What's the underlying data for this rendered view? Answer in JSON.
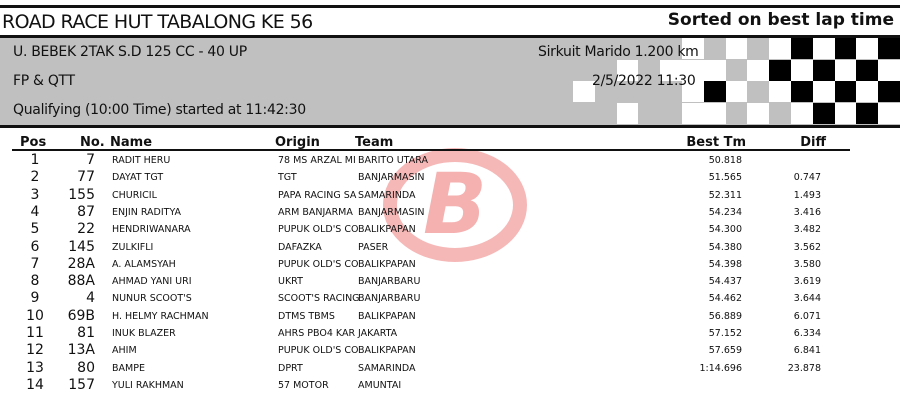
{
  "header": {
    "title": "ROAD RACE HUT TABALONG KE 56",
    "sort_note": "Sorted on best lap time",
    "class_name": "U. BEBEK 2TAK S.D 125 CC - 40 UP",
    "session": "FP & QTT",
    "status": "Qualifying (10:00 Time) started at 11:42:30",
    "circuit": "Sirkuit Marido 1.200 km",
    "datetime": "2/5/2022 11:30"
  },
  "logo": {
    "text": "B",
    "color": "#e01010"
  },
  "table": {
    "columns": {
      "pos": "Pos",
      "no": "No.",
      "name": "Name",
      "origin": "Origin",
      "team": "Team",
      "best": "Best Tm",
      "diff": "Diff"
    },
    "rows": [
      {
        "pos": "1",
        "no": "7",
        "name": "RADIT HERU",
        "origin": "78 MS ARZAL MI",
        "team": "BARITO UTARA",
        "best": "50.818",
        "diff": ""
      },
      {
        "pos": "2",
        "no": "77",
        "name": "DAYAT TGT",
        "origin": "TGT",
        "team": "BANJARMASIN",
        "best": "51.565",
        "diff": "0.747"
      },
      {
        "pos": "3",
        "no": "155",
        "name": "CHURICIL",
        "origin": "PAPA RACING SA",
        "team": "SAMARINDA",
        "best": "52.311",
        "diff": "1.493"
      },
      {
        "pos": "4",
        "no": "87",
        "name": "ENJIN RADITYA",
        "origin": "ARM BANJARMA",
        "team": "BANJARMASIN",
        "best": "54.234",
        "diff": "3.416"
      },
      {
        "pos": "5",
        "no": "22",
        "name": "HENDRIWANARA",
        "origin": "PUPUK OLD'S CO",
        "team": "BALIKPAPAN",
        "best": "54.300",
        "diff": "3.482"
      },
      {
        "pos": "6",
        "no": "145",
        "name": "ZULKIFLI",
        "origin": "DAFAZKA",
        "team": "PASER",
        "best": "54.380",
        "diff": "3.562"
      },
      {
        "pos": "7",
        "no": "28A",
        "name": "A. ALAMSYAH",
        "origin": "PUPUK OLD'S CO",
        "team": "BALIKPAPAN",
        "best": "54.398",
        "diff": "3.580"
      },
      {
        "pos": "8",
        "no": "88A",
        "name": "AHMAD YANI URI",
        "origin": "UKRT",
        "team": "BANJARBARU",
        "best": "54.437",
        "diff": "3.619"
      },
      {
        "pos": "9",
        "no": "4",
        "name": "NUNUR SCOOT'S",
        "origin": "SCOOT'S RACING",
        "team": "BANJARBARU",
        "best": "54.462",
        "diff": "3.644"
      },
      {
        "pos": "10",
        "no": "69B",
        "name": "H. HELMY RACHMAN",
        "origin": "DTMS TBMS",
        "team": "BALIKPAPAN",
        "best": "56.889",
        "diff": "6.071"
      },
      {
        "pos": "11",
        "no": "81",
        "name": "INUK BLAZER",
        "origin": "AHRS PBO4 KAR",
        "team": "JAKARTA",
        "best": "57.152",
        "diff": "6.334"
      },
      {
        "pos": "12",
        "no": "13A",
        "name": "AHIM",
        "origin": "PUPUK OLD'S CO",
        "team": "BALIKPAPAN",
        "best": "57.659",
        "diff": "6.841"
      },
      {
        "pos": "13",
        "no": "80",
        "name": "BAMPE",
        "origin": "DPRT",
        "team": "SAMARINDA",
        "best": "1:14.696",
        "diff": "23.878"
      },
      {
        "pos": "14",
        "no": "157",
        "name": "YULI RAKHMAN",
        "origin": "57 MOTOR",
        "team": "AMUNTAI",
        "best": "",
        "diff": ""
      }
    ]
  }
}
